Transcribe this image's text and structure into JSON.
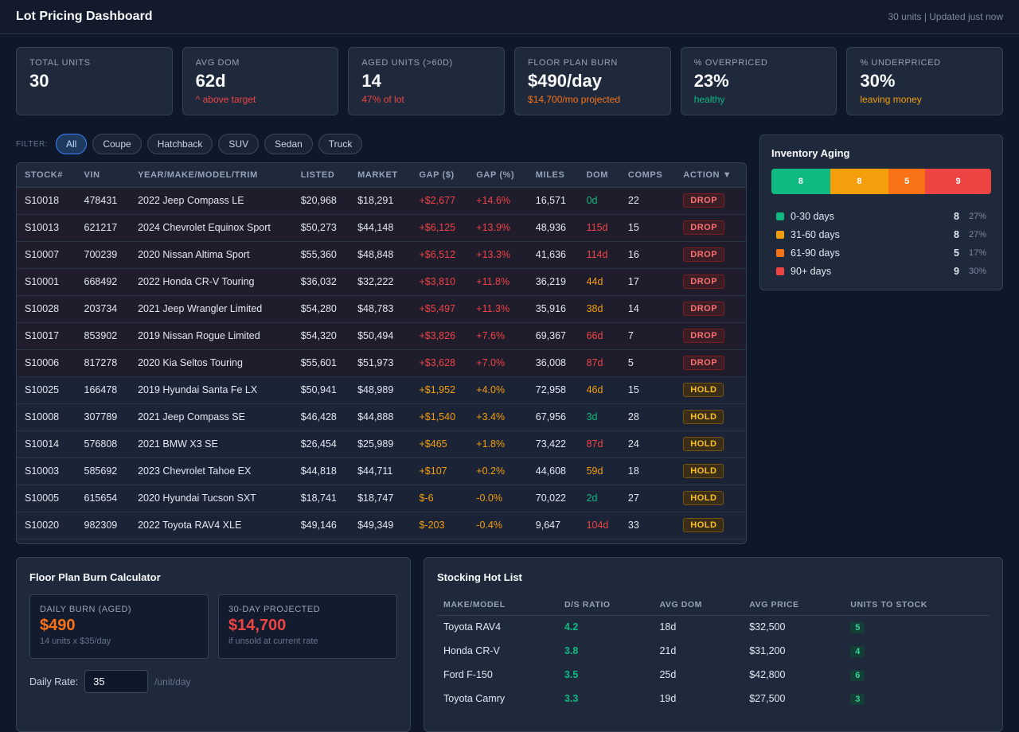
{
  "header": {
    "title": "Lot Pricing Dashboard",
    "meta": "30 units | Updated just now"
  },
  "kpis": [
    {
      "label": "TOTAL UNITS",
      "value": "30",
      "sub": "",
      "sub_color": "#94a3b8"
    },
    {
      "label": "AVG DOM",
      "value": "62d",
      "sub": "^ above target",
      "sub_color": "#ef4444"
    },
    {
      "label": "AGED UNITS (>60D)",
      "value": "14",
      "sub": "47% of lot",
      "sub_color": "#ef4444"
    },
    {
      "label": "FLOOR PLAN BURN",
      "value": "$490/day",
      "sub": "$14,700/mo projected",
      "sub_color": "#f97316"
    },
    {
      "label": "% OVERPRICED",
      "value": "23%",
      "sub": "healthy",
      "sub_color": "#10b981"
    },
    {
      "label": "% UNDERPRICED",
      "value": "30%",
      "sub": "leaving money",
      "sub_color": "#f59e0b"
    }
  ],
  "filters": {
    "label": "FILTER:",
    "chips": [
      "All",
      "Coupe",
      "Hatchback",
      "SUV",
      "Sedan",
      "Truck"
    ],
    "active": "All"
  },
  "table": {
    "columns": [
      "STOCK#",
      "VIN",
      "YEAR/MAKE/MODEL/TRIM",
      "LISTED",
      "MARKET",
      "GAP ($)",
      "GAP (%)",
      "MILES",
      "DOM",
      "COMPS",
      "ACTION ▼"
    ],
    "rows": [
      {
        "stock": "S10018",
        "vin": "478431",
        "vehicle": "2022 Jeep Compass LE",
        "listed": "$20,968",
        "market": "$18,291",
        "gap": "+$2,677",
        "gap_pct": "+14.6%",
        "miles": "16,571",
        "dom": "0d",
        "dom_color": "green",
        "comps": "22",
        "action": "DROP"
      },
      {
        "stock": "S10013",
        "vin": "621217",
        "vehicle": "2024 Chevrolet Equinox Sport",
        "listed": "$50,273",
        "market": "$44,148",
        "gap": "+$6,125",
        "gap_pct": "+13.9%",
        "miles": "48,936",
        "dom": "115d",
        "dom_color": "red",
        "comps": "15",
        "action": "DROP"
      },
      {
        "stock": "S10007",
        "vin": "700239",
        "vehicle": "2020 Nissan Altima Sport",
        "listed": "$55,360",
        "market": "$48,848",
        "gap": "+$6,512",
        "gap_pct": "+13.3%",
        "miles": "41,636",
        "dom": "114d",
        "dom_color": "red",
        "comps": "16",
        "action": "DROP"
      },
      {
        "stock": "S10001",
        "vin": "668492",
        "vehicle": "2022 Honda CR-V Touring",
        "listed": "$36,032",
        "market": "$32,222",
        "gap": "+$3,810",
        "gap_pct": "+11.8%",
        "miles": "36,219",
        "dom": "44d",
        "dom_color": "amber",
        "comps": "17",
        "action": "DROP"
      },
      {
        "stock": "S10028",
        "vin": "203734",
        "vehicle": "2021 Jeep Wrangler Limited",
        "listed": "$54,280",
        "market": "$48,783",
        "gap": "+$5,497",
        "gap_pct": "+11.3%",
        "miles": "35,916",
        "dom": "38d",
        "dom_color": "amber",
        "comps": "14",
        "action": "DROP"
      },
      {
        "stock": "S10017",
        "vin": "853902",
        "vehicle": "2019 Nissan Rogue Limited",
        "listed": "$54,320",
        "market": "$50,494",
        "gap": "+$3,826",
        "gap_pct": "+7.6%",
        "miles": "69,367",
        "dom": "66d",
        "dom_color": "red",
        "comps": "7",
        "action": "DROP"
      },
      {
        "stock": "S10006",
        "vin": "817278",
        "vehicle": "2020 Kia Seltos Touring",
        "listed": "$55,601",
        "market": "$51,973",
        "gap": "+$3,628",
        "gap_pct": "+7.0%",
        "miles": "36,008",
        "dom": "87d",
        "dom_color": "red",
        "comps": "5",
        "action": "DROP"
      },
      {
        "stock": "S10025",
        "vin": "166478",
        "vehicle": "2019 Hyundai Santa Fe LX",
        "listed": "$50,941",
        "market": "$48,989",
        "gap": "+$1,952",
        "gap_pct": "+4.0%",
        "miles": "72,958",
        "dom": "46d",
        "dom_color": "amber",
        "comps": "15",
        "action": "HOLD"
      },
      {
        "stock": "S10008",
        "vin": "307789",
        "vehicle": "2021 Jeep Compass SE",
        "listed": "$46,428",
        "market": "$44,888",
        "gap": "+$1,540",
        "gap_pct": "+3.4%",
        "miles": "67,956",
        "dom": "3d",
        "dom_color": "green",
        "comps": "28",
        "action": "HOLD"
      },
      {
        "stock": "S10014",
        "vin": "576808",
        "vehicle": "2021 BMW X3 SE",
        "listed": "$26,454",
        "market": "$25,989",
        "gap": "+$465",
        "gap_pct": "+1.8%",
        "miles": "73,422",
        "dom": "87d",
        "dom_color": "red",
        "comps": "24",
        "action": "HOLD"
      },
      {
        "stock": "S10003",
        "vin": "585692",
        "vehicle": "2023 Chevrolet Tahoe EX",
        "listed": "$44,818",
        "market": "$44,711",
        "gap": "+$107",
        "gap_pct": "+0.2%",
        "miles": "44,608",
        "dom": "59d",
        "dom_color": "amber",
        "comps": "18",
        "action": "HOLD"
      },
      {
        "stock": "S10005",
        "vin": "615654",
        "vehicle": "2020 Hyundai Tucson SXT",
        "listed": "$18,741",
        "market": "$18,747",
        "gap": "$-6",
        "gap_pct": "-0.0%",
        "miles": "70,022",
        "dom": "2d",
        "dom_color": "green",
        "comps": "27",
        "action": "HOLD"
      },
      {
        "stock": "S10020",
        "vin": "982309",
        "vehicle": "2022 Toyota RAV4 XLE",
        "listed": "$49,146",
        "market": "$49,349",
        "gap": "$-203",
        "gap_pct": "-0.4%",
        "miles": "9,647",
        "dom": "104d",
        "dom_color": "red",
        "comps": "33",
        "action": "HOLD"
      }
    ]
  },
  "aging": {
    "title": "Inventory Aging",
    "buckets": [
      {
        "label": "0-30 days",
        "count": 8,
        "count_text": "8",
        "pct": "27%",
        "color": "#10b981"
      },
      {
        "label": "31-60 days",
        "count": 8,
        "count_text": "8",
        "pct": "27%",
        "color": "#f59e0b"
      },
      {
        "label": "61-90 days",
        "count": 5,
        "count_text": "5",
        "pct": "17%",
        "color": "#f97316"
      },
      {
        "label": "90+ days",
        "count": 9,
        "count_text": "9",
        "pct": "30%",
        "color": "#ef4444"
      }
    ]
  },
  "calculator": {
    "title": "Floor Plan Burn Calculator",
    "daily": {
      "label": "DAILY BURN (AGED)",
      "value": "$490",
      "sub": "14 units x $35/day",
      "color": "#f97316"
    },
    "projected": {
      "label": "30-DAY PROJECTED",
      "value": "$14,700",
      "sub": "if unsold at current rate",
      "color": "#ef4444"
    },
    "rate_label": "Daily Rate:",
    "rate_value": "35",
    "rate_unit": "/unit/day"
  },
  "hotlist": {
    "title": "Stocking Hot List",
    "columns": [
      "MAKE/MODEL",
      "D/S RATIO",
      "AVG DOM",
      "AVG PRICE",
      "UNITS TO STOCK"
    ],
    "rows": [
      {
        "model": "Toyota RAV4",
        "ratio": "4.2",
        "dom": "18d",
        "price": "$32,500",
        "units": "5"
      },
      {
        "model": "Honda CR-V",
        "ratio": "3.8",
        "dom": "21d",
        "price": "$31,200",
        "units": "4"
      },
      {
        "model": "Ford F-150",
        "ratio": "3.5",
        "dom": "25d",
        "price": "$42,800",
        "units": "6"
      },
      {
        "model": "Toyota Camry",
        "ratio": "3.3",
        "dom": "19d",
        "price": "$27,500",
        "units": "3"
      }
    ]
  }
}
